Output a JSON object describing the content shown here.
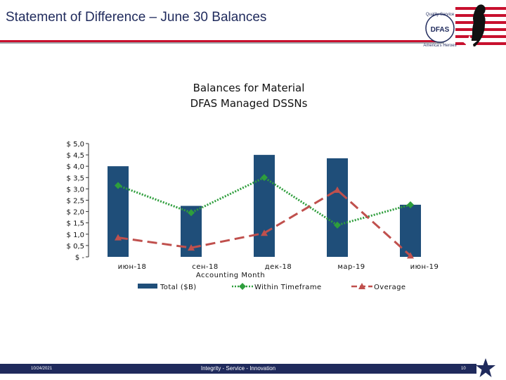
{
  "header": {
    "title": "Statement of Difference – June 30 Balances",
    "logo_text_top": "Quality Service",
    "logo_text_bottom": "America's Heroes",
    "logo_badge": "DFAS"
  },
  "chart_data": {
    "type": "bar",
    "title": "Balances for Material\nDFAS Managed DSSNs",
    "xlabel": "Accounting Month",
    "ylabel": "",
    "categories": [
      "июн-18",
      "сен-18",
      "дек-18",
      "мар-19",
      "июн-19"
    ],
    "ylim": [
      0,
      5.0
    ],
    "y_ticks": [
      {
        "value": 0,
        "label": "$ -"
      },
      {
        "value": 0.5,
        "label": "$ 0,5"
      },
      {
        "value": 1.0,
        "label": "$ 1,0"
      },
      {
        "value": 1.5,
        "label": "$ 1,5"
      },
      {
        "value": 2.0,
        "label": "$ 2,0"
      },
      {
        "value": 2.5,
        "label": "$ 2,5"
      },
      {
        "value": 3.0,
        "label": "$ 3,0"
      },
      {
        "value": 3.5,
        "label": "$ 3,5"
      },
      {
        "value": 4.0,
        "label": "$ 4,0"
      },
      {
        "value": 4.5,
        "label": "$ 4,5"
      },
      {
        "value": 5.0,
        "label": "$ 5,0"
      }
    ],
    "series": [
      {
        "name": "Total ($B)",
        "type": "bar",
        "color": "#1f4e79",
        "values": [
          4.0,
          2.25,
          4.5,
          4.35,
          2.3
        ]
      },
      {
        "name": "Within Timeframe",
        "type": "line",
        "style": "dotted",
        "marker": "diamond",
        "color": "#2e9e3c",
        "values": [
          3.15,
          1.95,
          3.5,
          1.4,
          2.3
        ]
      },
      {
        "name": "Overage",
        "type": "line",
        "style": "dashed",
        "marker": "triangle",
        "color": "#c0504d",
        "values": [
          0.85,
          0.4,
          1.05,
          2.95,
          0.05
        ]
      }
    ],
    "grid": false,
    "legend": "bottom"
  },
  "footer": {
    "date": "10/24/2021",
    "motto": "Integrity - Service - Innovation",
    "page": "10"
  }
}
